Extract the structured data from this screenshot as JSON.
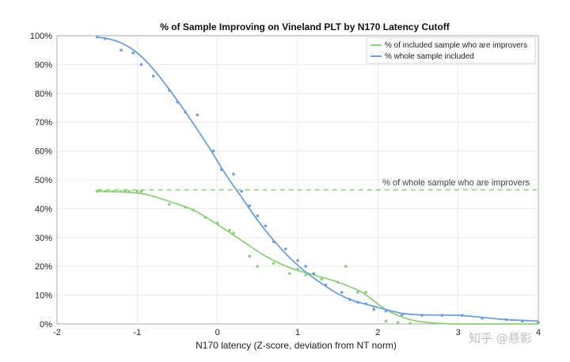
{
  "chart_data": {
    "type": "line",
    "title": "% of Sample Improving on Vineland PLT by N170 Latency Cutoff",
    "xlabel": "N170 latency (Z-score, deviation from NT norm)",
    "ylabel": "",
    "xlim": [
      -2,
      4
    ],
    "ylim": [
      0,
      100
    ],
    "x_ticks": [
      -2,
      -1,
      0,
      1,
      2,
      3,
      4
    ],
    "x_tick_labels": [
      "-2",
      "-1",
      "0",
      "1",
      "2",
      "3",
      "4"
    ],
    "y_ticks": [
      0,
      10,
      20,
      30,
      40,
      50,
      60,
      70,
      80,
      90,
      100
    ],
    "y_tick_labels": [
      "0%",
      "10%",
      "20%",
      "30%",
      "40%",
      "50%",
      "60%",
      "70%",
      "80%",
      "90%",
      "100%"
    ],
    "legend_position": "top-right",
    "series": [
      {
        "name": "% of included sample who are improvers",
        "color": "#8ed07a",
        "fit_x": [
          -1.5,
          -1.2,
          -0.9,
          -0.6,
          -0.3,
          0.0,
          0.3,
          0.6,
          0.9,
          1.2,
          1.5,
          1.8,
          2.1,
          2.4,
          2.7,
          3.0,
          3.5,
          4.0
        ],
        "fit_y": [
          46,
          45.8,
          45,
          42.5,
          39.5,
          34.5,
          29,
          23.5,
          19.5,
          17,
          14.5,
          11,
          5,
          1.5,
          0.3,
          0,
          0,
          0
        ],
        "points_x": [
          -1.5,
          -1.4,
          -1.3,
          -1.2,
          -1.15,
          -1.1,
          -1.0,
          -0.95,
          -0.6,
          -0.4,
          -0.3,
          -0.15,
          0.0,
          0.15,
          0.2,
          0.4,
          0.5,
          0.7,
          0.9,
          1.0,
          1.1,
          1.3,
          1.5,
          1.6,
          1.75,
          1.85,
          1.95,
          2.1,
          2.25,
          2.4
        ],
        "points_y": [
          46,
          46,
          46,
          46,
          46,
          46,
          46,
          46,
          41.5,
          40.5,
          39.5,
          37,
          35,
          32.5,
          31.5,
          23.5,
          20,
          21,
          17.5,
          19,
          17,
          15.5,
          14.5,
          20,
          11,
          11,
          6,
          1,
          0.5,
          0.2
        ]
      },
      {
        "name": "% whole sample included",
        "color": "#6f9fdb",
        "fit_x": [
          -1.5,
          -1.3,
          -1.1,
          -0.9,
          -0.7,
          -0.5,
          -0.3,
          -0.1,
          0.1,
          0.3,
          0.5,
          0.7,
          0.9,
          1.1,
          1.3,
          1.5,
          1.7,
          1.9,
          2.1,
          2.3,
          2.5,
          2.7,
          3.0,
          3.3,
          3.6,
          4.0
        ],
        "fit_y": [
          99.5,
          98.5,
          96,
          91.5,
          85,
          77.5,
          69.5,
          61,
          52,
          44,
          36,
          29,
          23,
          18,
          14,
          10.5,
          8,
          6.5,
          5,
          3.7,
          3.2,
          3.1,
          3.0,
          2.3,
          1.5,
          1.0
        ],
        "points_x": [
          -1.5,
          -1.4,
          -1.2,
          -1.05,
          -0.95,
          -0.8,
          -0.6,
          -0.5,
          -0.4,
          -0.25,
          -0.05,
          0.05,
          0.2,
          0.3,
          0.4,
          0.5,
          0.6,
          0.7,
          0.85,
          1.0,
          1.1,
          1.2,
          1.35,
          1.55,
          1.65,
          1.75,
          1.85,
          1.95,
          2.1,
          2.3,
          2.55,
          2.8,
          3.05,
          3.3,
          3.6,
          3.8,
          4.0
        ],
        "points_y": [
          99.5,
          99,
          95,
          94,
          90,
          86,
          81,
          77,
          73.5,
          72.5,
          60,
          53.5,
          52,
          46,
          41,
          37.5,
          34,
          28.5,
          26,
          22,
          20,
          17.5,
          13.5,
          11,
          8.5,
          7.5,
          7,
          5,
          4.5,
          3.2,
          3,
          3,
          3,
          2,
          1.5,
          1,
          0.5
        ]
      },
      {
        "name": "% of whole sample who are improvers",
        "color": "#8ed07a",
        "style": "dashed",
        "y": 46.5
      }
    ],
    "annotations": [
      "% of whole sample who are improvers"
    ]
  },
  "watermark": "知乎 @悬影"
}
